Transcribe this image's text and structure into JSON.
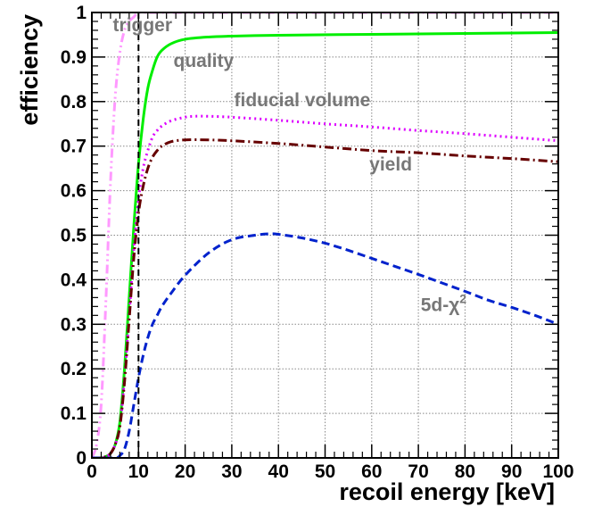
{
  "chart_data": {
    "type": "line",
    "xlabel": "recoil energy [keV]",
    "ylabel": "efficiency",
    "xlim": [
      0,
      100
    ],
    "ylim": [
      0,
      1
    ],
    "x_ticks": [
      "0",
      "10",
      "20",
      "30",
      "40",
      "50",
      "60",
      "70",
      "80",
      "90",
      "100"
    ],
    "y_ticks": [
      "0",
      "0.1",
      "0.2",
      "0.3",
      "0.4",
      "0.5",
      "0.6",
      "0.7",
      "0.8",
      "0.9",
      "1"
    ],
    "grid": true,
    "threshold_line": {
      "x": 10,
      "style": "dashed",
      "color": "#000000"
    },
    "series": [
      {
        "name": "trigger",
        "color": "#ff99ff",
        "style": "dash-dot-dot",
        "x": [
          0,
          1,
          2,
          3,
          4,
          5,
          6,
          7,
          8,
          9,
          10,
          12,
          15,
          20,
          30,
          50,
          100
        ],
        "y": [
          0.0,
          0.03,
          0.12,
          0.35,
          0.62,
          0.81,
          0.91,
          0.96,
          0.98,
          0.99,
          1.0,
          1.0,
          1.0,
          1.0,
          1.0,
          1.0,
          1.0
        ]
      },
      {
        "name": "quality",
        "color": "#00ee00",
        "style": "solid",
        "x": [
          0,
          2,
          3,
          4,
          5,
          6,
          7,
          8,
          9,
          10,
          11,
          12,
          13,
          14,
          15,
          17,
          20,
          25,
          30,
          40,
          60,
          80,
          100
        ],
        "y": [
          0.0,
          0.0,
          0.003,
          0.01,
          0.03,
          0.08,
          0.2,
          0.36,
          0.52,
          0.66,
          0.76,
          0.83,
          0.87,
          0.9,
          0.915,
          0.93,
          0.94,
          0.945,
          0.947,
          0.949,
          0.951,
          0.953,
          0.955
        ]
      },
      {
        "name": "fiducial volume",
        "color": "#dd00ff",
        "style": "dotted",
        "x": [
          0,
          2,
          3,
          4,
          5,
          6,
          7,
          8,
          9,
          10,
          11,
          12,
          13,
          14,
          15,
          17,
          20,
          22,
          25,
          30,
          40,
          50,
          60,
          70,
          80,
          90,
          100
        ],
        "y": [
          0.0,
          0.0,
          0.003,
          0.01,
          0.03,
          0.07,
          0.18,
          0.32,
          0.47,
          0.58,
          0.65,
          0.69,
          0.72,
          0.735,
          0.745,
          0.757,
          0.765,
          0.767,
          0.767,
          0.765,
          0.758,
          0.75,
          0.743,
          0.735,
          0.728,
          0.72,
          0.712
        ]
      },
      {
        "name": "yield",
        "color": "#660000",
        "style": "dash-dot",
        "x": [
          0,
          2,
          3,
          4,
          5,
          6,
          7,
          8,
          9,
          10,
          11,
          12,
          13,
          14,
          15,
          17,
          20,
          25,
          30,
          40,
          50,
          60,
          70,
          80,
          90,
          100
        ],
        "y": [
          0.0,
          0.0,
          0.003,
          0.01,
          0.03,
          0.07,
          0.17,
          0.31,
          0.45,
          0.55,
          0.61,
          0.65,
          0.675,
          0.69,
          0.7,
          0.71,
          0.714,
          0.714,
          0.712,
          0.706,
          0.698,
          0.69,
          0.685,
          0.678,
          0.672,
          0.665
        ]
      },
      {
        "name": "5d-χ²",
        "color": "#0022cc",
        "style": "dashed",
        "x": [
          0,
          5,
          6,
          7,
          8,
          9,
          10,
          11,
          12,
          13,
          14,
          15,
          17,
          20,
          25,
          30,
          35,
          38,
          40,
          45,
          50,
          55,
          60,
          65,
          70,
          75,
          80,
          85,
          90,
          95,
          100
        ],
        "y": [
          0.0,
          0.0,
          0.005,
          0.02,
          0.06,
          0.12,
          0.18,
          0.23,
          0.27,
          0.3,
          0.32,
          0.34,
          0.37,
          0.41,
          0.46,
          0.49,
          0.5,
          0.503,
          0.502,
          0.494,
          0.482,
          0.466,
          0.448,
          0.43,
          0.412,
          0.393,
          0.374,
          0.354,
          0.338,
          0.32,
          0.3
        ]
      }
    ],
    "annotations": [
      {
        "text": "trigger",
        "x": 4.5,
        "y": 0.958,
        "color": "#777777"
      },
      {
        "text": "quality",
        "x": 17.5,
        "y": 0.878,
        "color": "#777777"
      },
      {
        "text": "fiducial volume",
        "x": 30.5,
        "y": 0.79,
        "color": "#777777"
      },
      {
        "text": "yield",
        "x": 59.5,
        "y": 0.645,
        "color": "#777777"
      },
      {
        "text": "5d-χ",
        "sup": "2",
        "x": 70.5,
        "y": 0.33,
        "color": "#777777"
      }
    ]
  }
}
